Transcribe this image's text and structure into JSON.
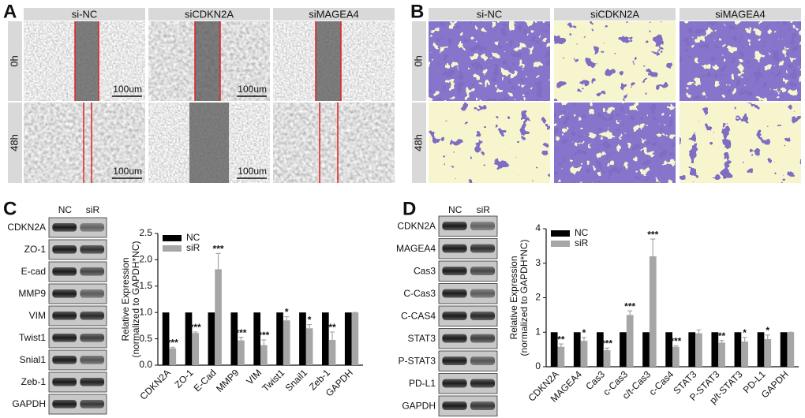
{
  "panel_a": {
    "label": "A",
    "columns": [
      "si-NC",
      "siCDKN2A",
      "siMAGEA4"
    ],
    "rows": [
      "0h",
      "48h"
    ],
    "scale_bar": "100um"
  },
  "panel_b": {
    "label": "B",
    "columns": [
      "si-NC",
      "siCDKN2A",
      "siMAGEA4"
    ],
    "rows": [
      "0h",
      "48h"
    ]
  },
  "panel_c": {
    "label": "C",
    "blot_columns": [
      "NC",
      "siR"
    ],
    "blot_rows": [
      "CDKN2A",
      "ZO-1",
      "E-cad",
      "MMP9",
      "VIM",
      "Twist1",
      "Snial1",
      "Zeb-1",
      "GAPDH"
    ]
  },
  "panel_d": {
    "label": "D",
    "blot_columns": [
      "NC",
      "siR"
    ],
    "blot_rows": [
      "CDKN2A",
      "MAGEA4",
      "Cas3",
      "C-Cas3",
      "C-CAS4",
      "STAT3",
      "P-STAT3",
      "PD-L1",
      "GAPDH"
    ]
  },
  "chart_data": [
    {
      "type": "bar",
      "ylabel": [
        "Relative Expression",
        "(normalized to GAPDH*NC)"
      ],
      "categories": [
        "CDKN2A",
        "ZO-1",
        "E-Cad",
        "MMP9",
        "VIM",
        "Twist1",
        "Snail1",
        "Zeb-1",
        "GAPDH"
      ],
      "series": [
        {
          "name": "NC",
          "color": "#000000",
          "values": [
            1.0,
            1.0,
            1.0,
            1.0,
            1.0,
            1.0,
            1.0,
            1.0,
            1.0
          ]
        },
        {
          "name": "siR",
          "color": "#a6a6a6",
          "values": [
            0.32,
            0.61,
            1.82,
            0.47,
            0.38,
            0.85,
            0.7,
            0.48,
            1.0
          ],
          "errors": [
            0.02,
            0.02,
            0.3,
            0.06,
            0.1,
            0.07,
            0.07,
            0.15,
            0
          ],
          "significance": [
            "***",
            "***",
            "***",
            "***",
            "***",
            "*",
            "*",
            "**",
            null
          ]
        }
      ],
      "ylim": [
        0,
        2.5
      ],
      "yticks": [
        {
          "value": 0,
          "label": "0.0"
        },
        {
          "value": 0.5,
          "label": "0.5"
        },
        {
          "value": 1,
          "label": "1.0"
        },
        {
          "value": 1.5,
          "label": "1.5"
        },
        {
          "value": 2,
          "label": "2.0"
        },
        {
          "value": 2.5,
          "label": "2.5"
        }
      ],
      "legend": "upper left"
    },
    {
      "type": "bar",
      "ylabel": [
        "Relative Expression",
        "(normalized to GAPDH*NC)"
      ],
      "categories": [
        "CDKN2A",
        "MAGEA4",
        "Cas3",
        "c-Cas3",
        "c/t-Cas3",
        "c-Cas4",
        "STAT3",
        "P-STAT3",
        "p/t-STAT3",
        "PD-L1",
        "GAPDH"
      ],
      "series": [
        {
          "name": "NC",
          "color": "#000000",
          "values": [
            1,
            1,
            1,
            1,
            1,
            1,
            1,
            1,
            1,
            1,
            1
          ]
        },
        {
          "name": "siR",
          "color": "#a6a6a6",
          "values": [
            0.58,
            0.75,
            0.48,
            1.5,
            3.2,
            0.58,
            0.97,
            0.7,
            0.73,
            0.8,
            1.0
          ],
          "errors": [
            0.08,
            0.1,
            0.06,
            0.12,
            0.5,
            0.03,
            0.1,
            0.06,
            0.12,
            0.12,
            0
          ],
          "significance": [
            "**",
            "*",
            "***",
            "***",
            "***",
            "***",
            null,
            "**",
            "*",
            "*",
            null
          ]
        }
      ],
      "ylim": [
        0,
        4
      ],
      "yticks": [
        0,
        1,
        2,
        3,
        4
      ],
      "legend": "upper left"
    }
  ]
}
